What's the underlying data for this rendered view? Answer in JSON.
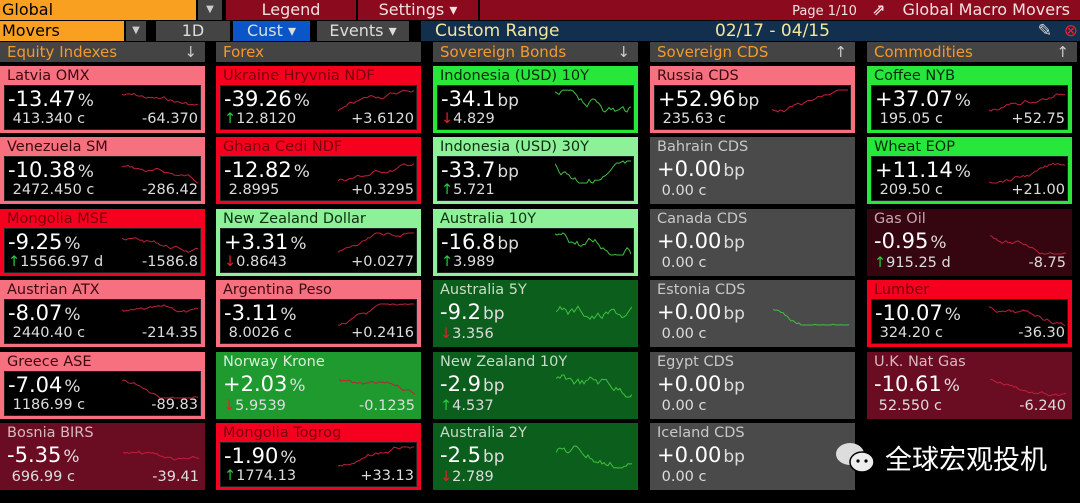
{
  "topbar": {
    "view": "Global",
    "legend": "Legend",
    "settings": "Settings ▾",
    "page": "Page 1/10",
    "title": "Global Macro Movers"
  },
  "toolbar": {
    "mode": "Movers",
    "period": "1D",
    "cust": "Cust ▾",
    "events": "Events ▾",
    "range_label": "Custom Range",
    "range": "02/17 - 04/15"
  },
  "colors": {
    "pink": "#f7707f",
    "red": "#f5001e",
    "lightgreen": "#8ef098",
    "brightgreen": "#27e83a",
    "darkgreen": "#0b5e1c",
    "green": "#1e9a2e",
    "maroon": "#6a0c22",
    "darkmaroon": "#350510",
    "gray": "#4a4a4a"
  },
  "columns": [
    {
      "header": "Equity Indexes",
      "sort": "↓",
      "cells": [
        {
          "name": "Latvia OMX",
          "value": "-13.47",
          "unit": "%",
          "price": "413.340 c",
          "change": "-64.370",
          "arrow": "",
          "style": "pink",
          "boxed": true,
          "trend": -1
        },
        {
          "name": "Venezuela SM",
          "value": "-10.38",
          "unit": "%",
          "price": "2472.450 c",
          "change": "-286.42",
          "arrow": "",
          "style": "pink",
          "boxed": true,
          "trend": -1
        },
        {
          "name": "Mongolia MSE",
          "value": "-9.25",
          "unit": "%",
          "price": "15566.97 d",
          "change": "-1586.8",
          "arrow": "up",
          "style": "red",
          "boxed": true,
          "trend": -1
        },
        {
          "name": "Austrian ATX",
          "value": "-8.07",
          "unit": "%",
          "price": "2440.40 c",
          "change": "-214.35",
          "arrow": "",
          "style": "pink",
          "boxed": true,
          "trend": -1
        },
        {
          "name": "Greece ASE",
          "value": "-7.04",
          "unit": "%",
          "price": "1186.99 c",
          "change": "-89.83",
          "arrow": "",
          "style": "pink",
          "boxed": true,
          "trend": -1
        },
        {
          "name": "Bosnia BIRS",
          "value": "-5.35",
          "unit": "%",
          "price": "696.99 c",
          "change": "-39.41",
          "arrow": "",
          "style": "maroon",
          "boxed": false,
          "trend": -1
        }
      ]
    },
    {
      "header": "Forex",
      "sort": "",
      "cells": [
        {
          "name": "Ukraine Hryvnia NDF",
          "value": "-39.26",
          "unit": "%",
          "price": "12.8120",
          "change": "+3.6120",
          "arrow": "up",
          "style": "red",
          "boxed": true,
          "trend": 1
        },
        {
          "name": "Ghana Cedi NDF",
          "value": "-12.82",
          "unit": "%",
          "price": "2.8995",
          "change": "+0.3295",
          "arrow": "",
          "style": "red",
          "boxed": true,
          "trend": 1
        },
        {
          "name": "New Zealand Dollar",
          "value": "+3.31",
          "unit": "%",
          "price": "0.8643",
          "change": "+0.0277",
          "arrow": "down",
          "style": "lightgreen",
          "boxed": true,
          "trend": 1
        },
        {
          "name": "Argentina Peso",
          "value": "-3.11",
          "unit": "%",
          "price": "8.0026 c",
          "change": "+0.2416",
          "arrow": "",
          "style": "pink",
          "boxed": true,
          "trend": 1
        },
        {
          "name": "Norway Krone",
          "value": "+2.03",
          "unit": "%",
          "price": "5.9539",
          "change": "-0.1235",
          "arrow": "down",
          "style": "green",
          "boxed": false,
          "trend": -1
        },
        {
          "name": "Mongolia Togrog",
          "value": "-1.90",
          "unit": "%",
          "price": "1774.13",
          "change": "+33.13",
          "arrow": "up",
          "style": "red",
          "boxed": true,
          "trend": 1
        }
      ]
    },
    {
      "header": "Sovereign Bonds",
      "sort": "↓",
      "cells": [
        {
          "name": "Indonesia (USD) 10Y",
          "value": "-34.1",
          "unit": "bp",
          "price": "4.829",
          "change": "",
          "arrow": "down",
          "style": "brightgreen",
          "boxed": true,
          "trend": -1
        },
        {
          "name": "Indonesia (USD) 30Y",
          "value": "-33.7",
          "unit": "bp",
          "price": "5.721",
          "change": "",
          "arrow": "up",
          "style": "lightgreen",
          "boxed": true,
          "trend": -1
        },
        {
          "name": "Australia 10Y",
          "value": "-16.8",
          "unit": "bp",
          "price": "3.989",
          "change": "",
          "arrow": "up",
          "style": "lightgreen",
          "boxed": true,
          "trend": -1
        },
        {
          "name": "Australia 5Y",
          "value": "-9.2",
          "unit": "bp",
          "price": "3.356",
          "change": "",
          "arrow": "down",
          "style": "darkgreen",
          "boxed": false,
          "trend": -1
        },
        {
          "name": "New Zealand 10Y",
          "value": "-2.9",
          "unit": "bp",
          "price": "4.537",
          "change": "",
          "arrow": "up",
          "style": "darkgreen",
          "boxed": false,
          "trend": -1
        },
        {
          "name": "Australia 2Y",
          "value": "-2.5",
          "unit": "bp",
          "price": "2.789",
          "change": "",
          "arrow": "down",
          "style": "darkgreen",
          "boxed": false,
          "trend": -1
        }
      ]
    },
    {
      "header": "Sovereign CDS",
      "sort": "↑",
      "cells": [
        {
          "name": "Russia CDS",
          "value": "+52.96",
          "unit": "bp",
          "price": "235.63 c",
          "change": "",
          "arrow": "",
          "style": "pink",
          "boxed": true,
          "trend": 1
        },
        {
          "name": "Bahrain CDS",
          "value": "+0.00",
          "unit": "bp",
          "price": "0.00 c",
          "change": "",
          "arrow": "",
          "style": "gray",
          "boxed": false,
          "trend": 0
        },
        {
          "name": "Canada CDS",
          "value": "+0.00",
          "unit": "bp",
          "price": "0.00 c",
          "change": "",
          "arrow": "",
          "style": "gray",
          "boxed": false,
          "trend": 0
        },
        {
          "name": "Estonia CDS",
          "value": "+0.00",
          "unit": "bp",
          "price": "0.00 c",
          "change": "",
          "arrow": "",
          "style": "gray",
          "boxed": false,
          "trend": -2
        },
        {
          "name": "Egypt CDS",
          "value": "+0.00",
          "unit": "bp",
          "price": "0.00 c",
          "change": "",
          "arrow": "",
          "style": "gray",
          "boxed": false,
          "trend": 0
        },
        {
          "name": "Iceland CDS",
          "value": "+0.00",
          "unit": "bp",
          "price": "0.00 c",
          "change": "",
          "arrow": "",
          "style": "gray",
          "boxed": false,
          "trend": 0
        }
      ]
    },
    {
      "header": "Commodities",
      "sort": "↑",
      "cells": [
        {
          "name": "Coffee NYB",
          "value": "+37.07",
          "unit": "%",
          "price": "195.05 c",
          "change": "+52.75",
          "arrow": "",
          "style": "brightgreen",
          "boxed": true,
          "trend": 1
        },
        {
          "name": "Wheat EOP",
          "value": "+11.14",
          "unit": "%",
          "price": "209.50 c",
          "change": "+21.00",
          "arrow": "",
          "style": "brightgreen",
          "boxed": true,
          "trend": 1
        },
        {
          "name": "Gas Oil",
          "value": "-0.95",
          "unit": "%",
          "price": "915.25 d",
          "change": "-8.75",
          "arrow": "up",
          "style": "darkmaroon",
          "boxed": false,
          "trend": -1
        },
        {
          "name": "Lumber",
          "value": "-10.07",
          "unit": "%",
          "price": "324.20 c",
          "change": "-36.30",
          "arrow": "",
          "style": "red",
          "boxed": true,
          "trend": -1
        },
        {
          "name": "U.K. Nat Gas",
          "value": "-10.61",
          "unit": "%",
          "price": "52.550 c",
          "change": "-6.240",
          "arrow": "",
          "style": "maroon",
          "boxed": false,
          "trend": -1
        }
      ]
    }
  ],
  "watermark": "全球宏观投机"
}
